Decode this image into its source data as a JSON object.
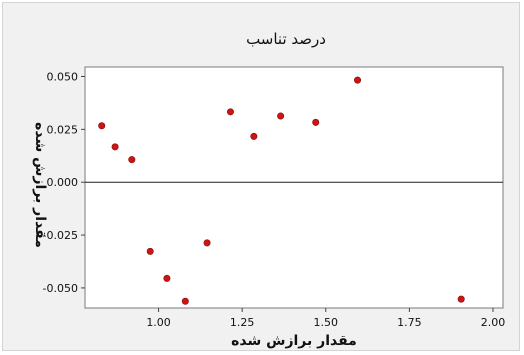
{
  "chart_data": {
    "type": "scatter",
    "title": "درصد تناسب",
    "xlabel": "مقدار برازش شده",
    "ylabel": "مقدار برازش شده",
    "xlim": [
      0.78,
      2.03
    ],
    "ylim": [
      -0.0595,
      0.0545
    ],
    "x_ticks": [
      1.0,
      1.25,
      1.5,
      1.75,
      2.0
    ],
    "x_tick_labels": [
      "1.00",
      "1.25",
      "1.50",
      "1.75",
      "2.00"
    ],
    "y_ticks": [
      0.05,
      0.025,
      0.0,
      -0.025,
      -0.05
    ],
    "y_tick_labels": [
      "0.050",
      "0.025",
      "0.000",
      "-0.025",
      "-0.050"
    ],
    "reference_line_y": 0.0,
    "grid": false,
    "marker_color": "#cc1414",
    "background": "#f1f1f1",
    "plot_background": "#ffffff",
    "points": [
      {
        "x": 0.83,
        "y": 0.0267
      },
      {
        "x": 0.87,
        "y": 0.0167
      },
      {
        "x": 0.92,
        "y": 0.0107
      },
      {
        "x": 0.975,
        "y": -0.0327
      },
      {
        "x": 1.025,
        "y": -0.0455
      },
      {
        "x": 1.08,
        "y": -0.0563
      },
      {
        "x": 1.145,
        "y": -0.0287
      },
      {
        "x": 1.215,
        "y": 0.0333
      },
      {
        "x": 1.285,
        "y": 0.0217
      },
      {
        "x": 1.365,
        "y": 0.0313
      },
      {
        "x": 1.47,
        "y": 0.0283
      },
      {
        "x": 1.595,
        "y": 0.0483
      },
      {
        "x": 1.905,
        "y": -0.0553
      }
    ]
  }
}
